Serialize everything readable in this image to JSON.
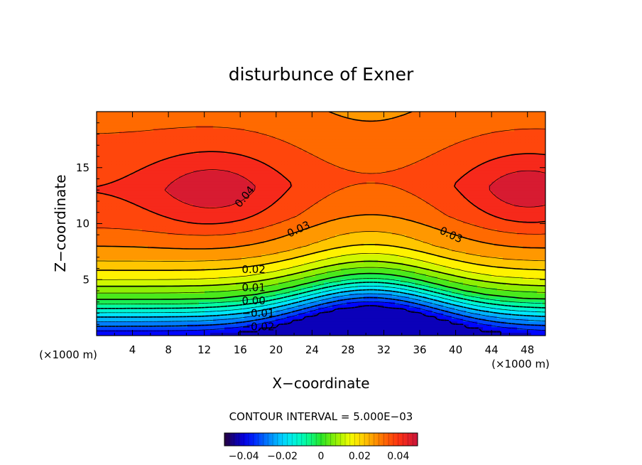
{
  "chart_data": {
    "type": "heatmap",
    "title": "disturbunce of Exner",
    "xlabel": "X−coordinate",
    "ylabel": "Z−coordinate",
    "x_unit": "(×1000 m)",
    "z_unit": "(×1000 m)",
    "xlim": [
      0,
      50
    ],
    "ylim": [
      0,
      20
    ],
    "x_ticks": [
      4,
      8,
      12,
      16,
      20,
      24,
      28,
      32,
      36,
      40,
      44,
      48
    ],
    "y_ticks": [
      5,
      10,
      15
    ],
    "contour_interval_text": "CONTOUR INTERVAL = 5.000E−03",
    "contour_interval": 0.005,
    "color_range": [
      -0.05,
      0.05
    ],
    "colorbar_ticks": [
      {
        "value": -0.04,
        "label": "−0.04"
      },
      {
        "value": -0.02,
        "label": "−0.02"
      },
      {
        "value": 0,
        "label": "0"
      },
      {
        "value": 0.02,
        "label": "0.02"
      },
      {
        "value": 0.04,
        "label": "0.04"
      }
    ],
    "contour_labels": [
      {
        "text": "0.04",
        "x": 16.5,
        "z": 12.4,
        "angle": -50
      },
      {
        "text": "0.03",
        "x": 22.5,
        "z": 9.5,
        "angle": -25
      },
      {
        "text": "0.03",
        "x": 39.5,
        "z": 9.0,
        "angle": 25
      },
      {
        "text": "0.02",
        "x": 17.5,
        "z": 5.9,
        "angle": 0
      },
      {
        "text": "0.01",
        "x": 17.5,
        "z": 4.3,
        "angle": 0
      },
      {
        "text": "0.00",
        "x": 17.5,
        "z": 3.1,
        "angle": 0
      },
      {
        "text": "−0.01",
        "x": 18.0,
        "z": 2.0,
        "angle": 0
      },
      {
        "text": "−0.02",
        "x": 18.0,
        "z": 0.8,
        "angle": 0
      }
    ],
    "field_model": {
      "base_profile": [
        [
          0,
          -0.04
        ],
        [
          1.5,
          -0.022
        ],
        [
          3.2,
          0.0
        ],
        [
          5,
          0.015
        ],
        [
          7,
          0.027
        ],
        [
          10,
          0.036
        ],
        [
          13,
          0.04
        ],
        [
          16,
          0.037
        ],
        [
          20,
          0.033
        ]
      ],
      "valley_center_x": 30.5,
      "valley_depth": 0.0045,
      "valley_width": 6.5,
      "max_lift": 3.2,
      "lift_width": 7,
      "lift_decay_height": 12,
      "blobs": [
        {
          "x": 13,
          "z": 13,
          "amplitude": 0.009,
          "sigma_x": 5,
          "sigma_z": 2.5
        },
        {
          "x": 48,
          "z": 13,
          "amplitude": 0.009,
          "sigma_x": 4.5,
          "sigma_z": 2.3
        }
      ]
    }
  }
}
